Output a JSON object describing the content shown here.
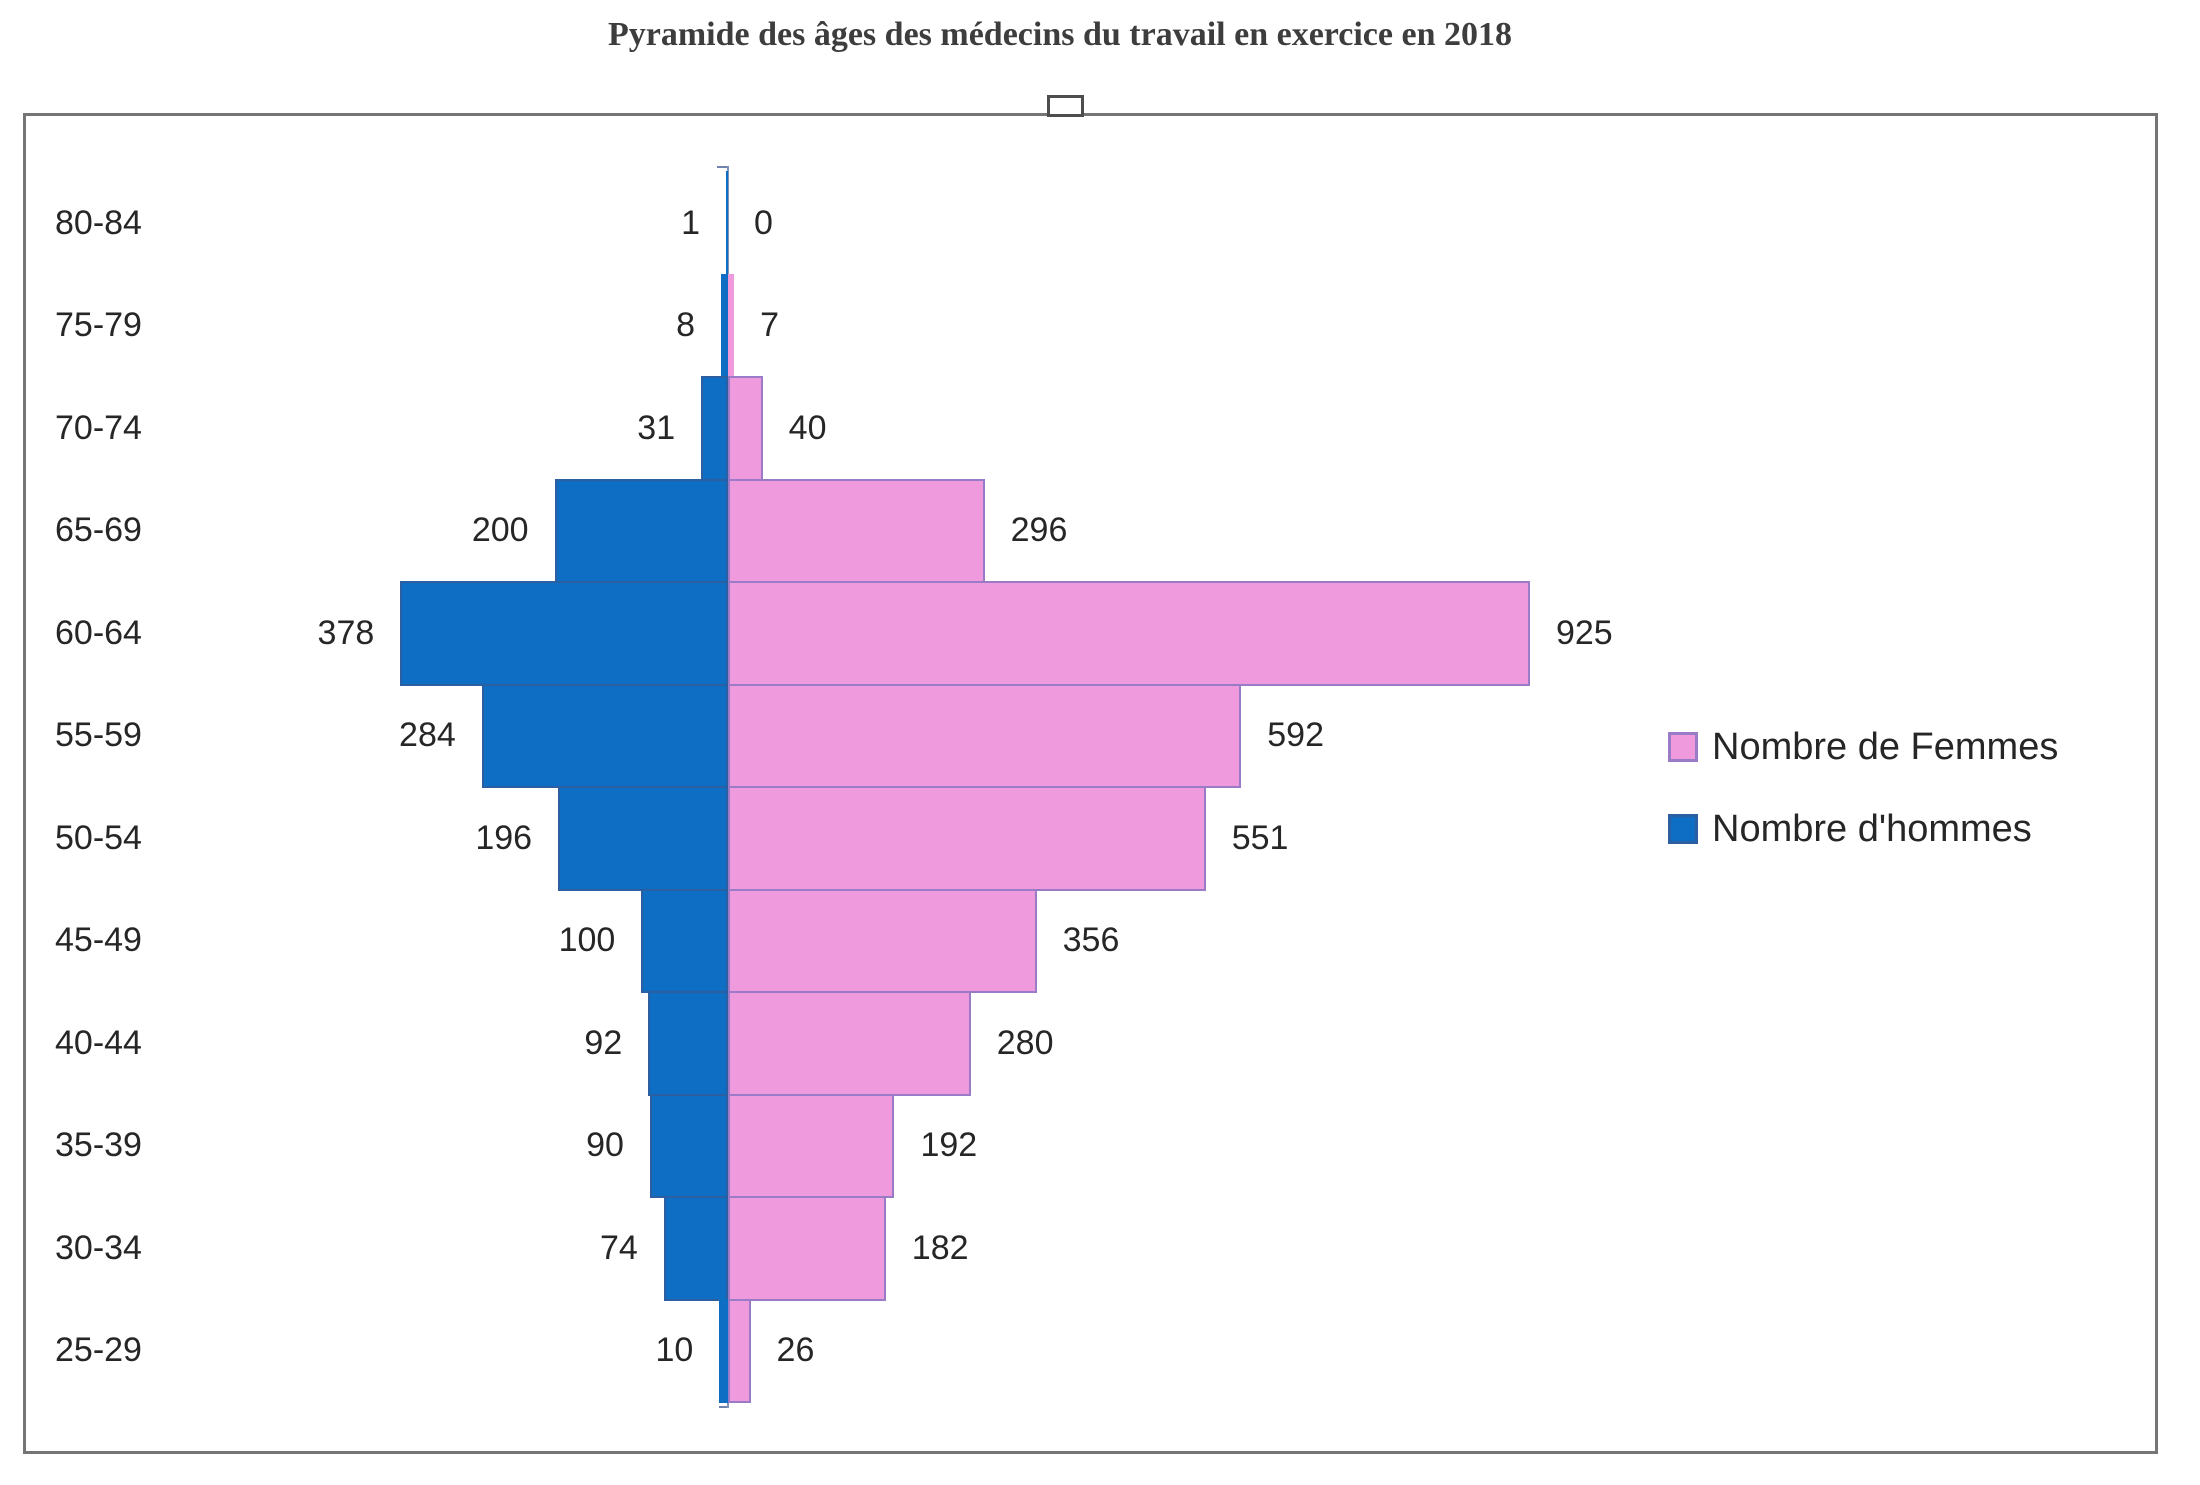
{
  "title": "Pyramide des âges des médecins du travail en exercice en 2018",
  "legend": {
    "items": [
      {
        "label": "Nombre de Femmes",
        "color": "#F09ADE",
        "border": "#9A7BC8"
      },
      {
        "label": "Nombre d'hommes",
        "color": "#0E6EC4",
        "border": "#2B5FA1"
      }
    ]
  },
  "chart_data": {
    "type": "bar",
    "subtype": "population_pyramid",
    "orientation": "horizontal",
    "title": "Pyramide des âges des médecins du travail en exercice en 2018",
    "categories": [
      "80-84",
      "75-79",
      "70-74",
      "65-69",
      "60-64",
      "55-59",
      "50-54",
      "45-49",
      "40-44",
      "35-39",
      "30-34",
      "25-29"
    ],
    "series": [
      {
        "name": "Nombre d'hommes",
        "side": "left",
        "color": "#0E6EC4",
        "border_color": "#2B5FA1",
        "values": [
          1,
          8,
          31,
          200,
          378,
          284,
          196,
          100,
          92,
          90,
          74,
          10
        ]
      },
      {
        "name": "Nombre de Femmes",
        "side": "right",
        "color": "#F09ADE",
        "border_color": "#9A7BC8",
        "values": [
          0,
          7,
          40,
          296,
          925,
          592,
          551,
          356,
          280,
          192,
          182,
          26
        ]
      }
    ],
    "data_labels": true,
    "legend_position": "right",
    "grid": false,
    "value_axis_hidden": true,
    "colors": {
      "axis": "#7F93BD",
      "chart_border": "#757575",
      "text": "#262626"
    }
  }
}
